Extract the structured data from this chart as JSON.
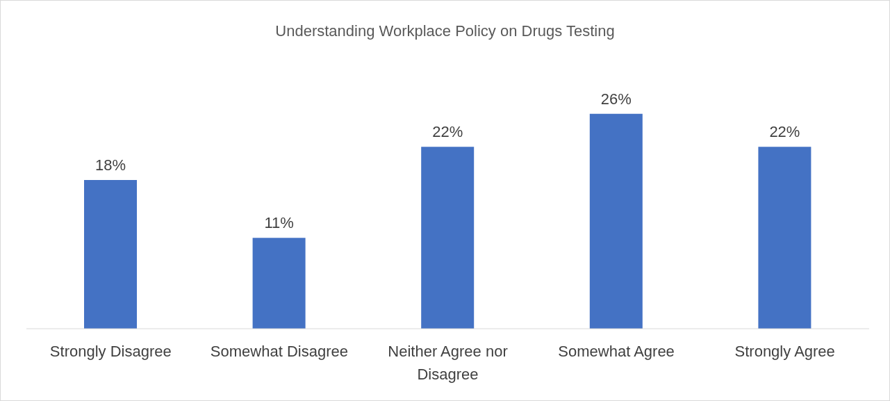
{
  "chart_data": {
    "type": "bar",
    "title": "Understanding Workplace Policy on Drugs Testing",
    "categories": [
      "Strongly Disagree",
      "Somewhat Disagree",
      "Neither Agree nor Disagree",
      "Somewhat Agree",
      "Strongly Agree"
    ],
    "values": [
      18,
      11,
      22,
      26,
      22
    ],
    "value_labels": [
      "18%",
      "11%",
      "22%",
      "26%",
      "22%"
    ],
    "color": "#4472c4",
    "tick_labels": "x"
  }
}
